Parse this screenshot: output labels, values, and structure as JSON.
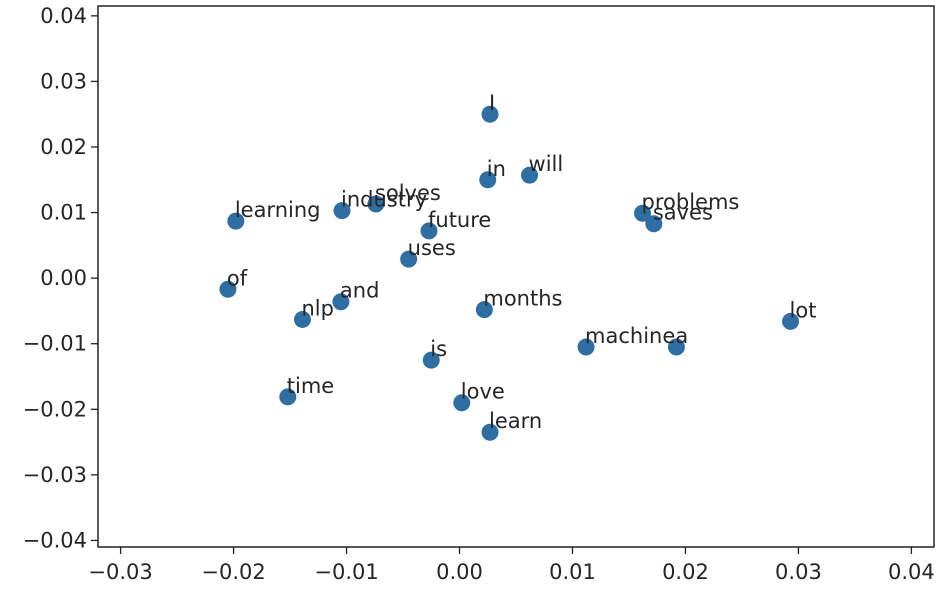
{
  "chart_data": {
    "type": "scatter",
    "title": "",
    "xlabel": "",
    "ylabel": "",
    "xlim": [
      -0.032,
      0.042
    ],
    "ylim": [
      -0.041,
      0.0415
    ],
    "grid": false,
    "marker_color": "#2f6ea3",
    "xticks": [
      -0.03,
      -0.02,
      -0.01,
      0.0,
      0.01,
      0.02,
      0.03,
      0.04
    ],
    "xtick_labels": [
      "−0.03",
      "−0.02",
      "−0.01",
      "0.00",
      "0.01",
      "0.02",
      "0.03",
      "0.04"
    ],
    "yticks": [
      0.04,
      0.03,
      0.02,
      0.01,
      0.0,
      -0.01,
      -0.02,
      -0.03,
      -0.04
    ],
    "ytick_labels": [
      "0.04",
      "0.03",
      "0.02",
      "0.01",
      "0.00",
      "−0.01",
      "−0.02",
      "−0.03",
      "−0.04"
    ],
    "points": [
      {
        "label": "I",
        "x": 0.0027,
        "y": 0.025
      },
      {
        "label": "in",
        "x": 0.0025,
        "y": 0.015
      },
      {
        "label": "will",
        "x": 0.0062,
        "y": 0.0157
      },
      {
        "label": "solves",
        "x": -0.0074,
        "y": 0.0113
      },
      {
        "label": "industry",
        "x": -0.0104,
        "y": 0.0103
      },
      {
        "label": "learning",
        "x": -0.0198,
        "y": 0.0087
      },
      {
        "label": "future",
        "x": -0.0027,
        "y": 0.0072
      },
      {
        "label": "uses",
        "x": -0.0045,
        "y": 0.0029
      },
      {
        "label": "problems",
        "x": 0.0162,
        "y": 0.0099
      },
      {
        "label": "saves",
        "x": 0.0172,
        "y": 0.0083
      },
      {
        "label": "of",
        "x": -0.0205,
        "y": -0.0017
      },
      {
        "label": "and",
        "x": -0.0105,
        "y": -0.0036
      },
      {
        "label": "nlp",
        "x": -0.0139,
        "y": -0.0063
      },
      {
        "label": "months",
        "x": 0.0022,
        "y": -0.0048
      },
      {
        "label": "lot",
        "x": 0.0293,
        "y": -0.0066
      },
      {
        "label": "machine",
        "x": 0.0112,
        "y": -0.0105
      },
      {
        "label": "a",
        "x": 0.0192,
        "y": -0.0105
      },
      {
        "label": "is",
        "x": -0.0025,
        "y": -0.0125
      },
      {
        "label": "time",
        "x": -0.0152,
        "y": -0.0181
      },
      {
        "label": "love",
        "x": 0.0002,
        "y": -0.019
      },
      {
        "label": "learn",
        "x": 0.0027,
        "y": -0.0235
      }
    ]
  }
}
